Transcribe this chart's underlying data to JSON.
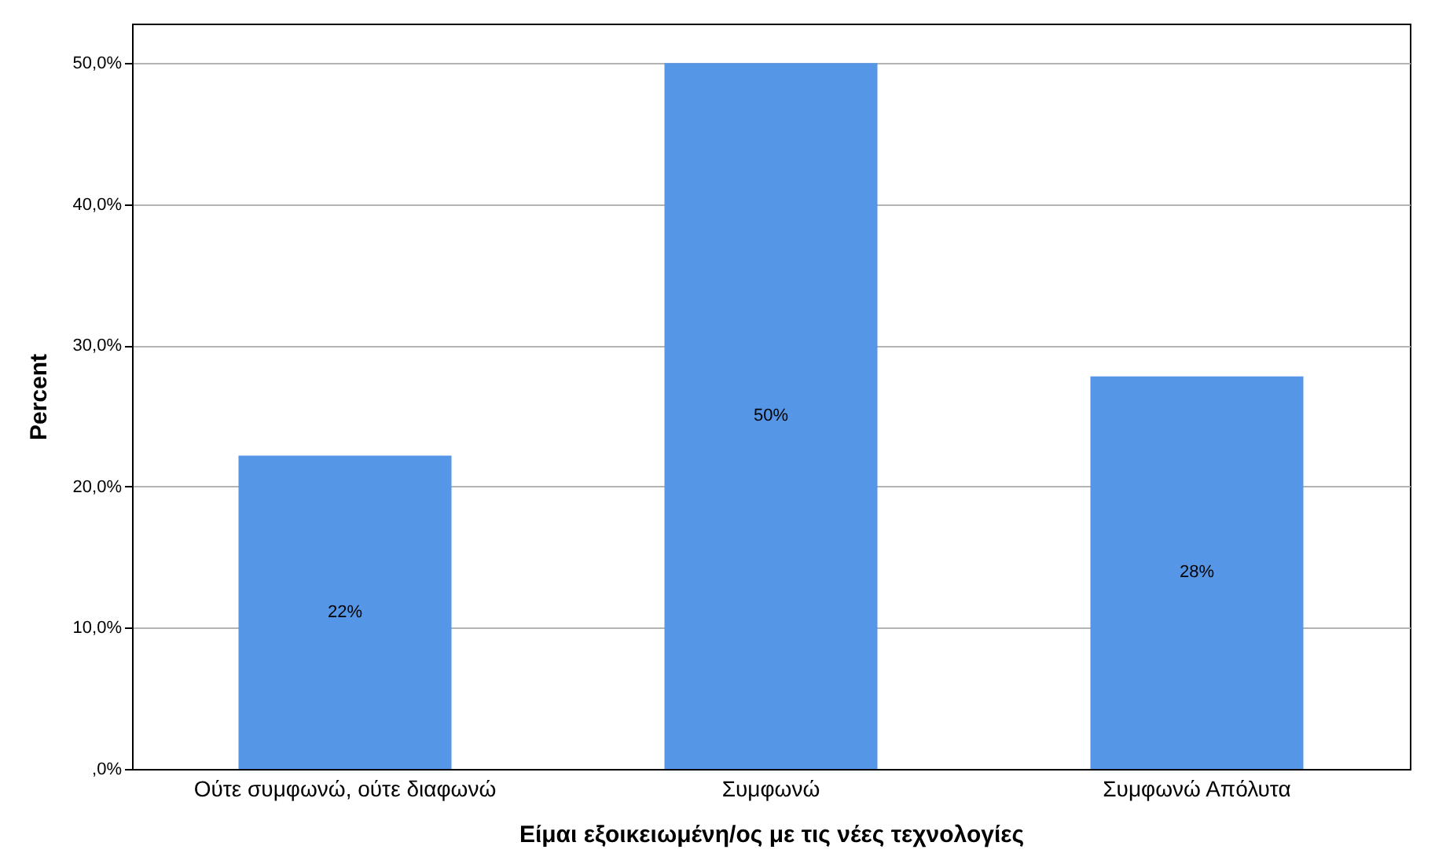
{
  "chart_data": {
    "type": "bar",
    "xlabel": "Είμαι εξοικειωμένη/ος με τις νέες τεχνολογίες",
    "ylabel": "Percent",
    "categories": [
      "Ούτε συμφωνώ, ούτε διαφωνώ",
      "Συμφωνώ",
      "Συμφωνώ Απόλυτα"
    ],
    "values": [
      22.2,
      50.0,
      27.8
    ],
    "value_labels": [
      "22%",
      "50%",
      "28%"
    ],
    "color": "#5596e6",
    "ylim": [
      0,
      52.8
    ],
    "yticks": [
      {
        "value": 0,
        "label": ",0%"
      },
      {
        "value": 10,
        "label": "10,0%"
      },
      {
        "value": 20,
        "label": "20,0%"
      },
      {
        "value": 30,
        "label": "30,0%"
      },
      {
        "value": 40,
        "label": "40,0%"
      },
      {
        "value": 50,
        "label": "50,0%"
      }
    ],
    "grid": "y"
  }
}
